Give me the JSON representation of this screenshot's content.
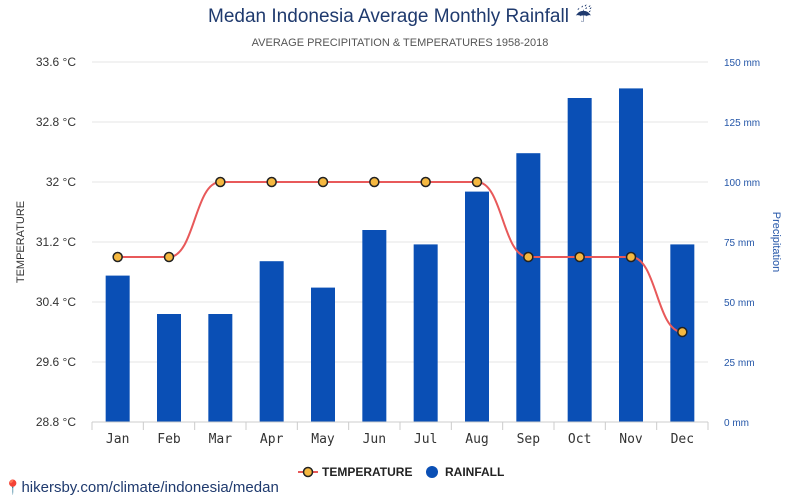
{
  "chart_data": {
    "type": "bar",
    "title": "Medan Indonesia Average Monthly Rainfall",
    "title_icon": "umbrella-rain-icon",
    "subtitle": "AVERAGE PRECIPITATION & TEMPERATURES 1958-2018",
    "categories": [
      "Jan",
      "Feb",
      "Mar",
      "Apr",
      "May",
      "Jun",
      "Jul",
      "Aug",
      "Sep",
      "Oct",
      "Nov",
      "Dec"
    ],
    "series": [
      {
        "name": "RAINFALL",
        "type": "bar",
        "axis": "right",
        "color": "#0a4fb5",
        "values": [
          61,
          45,
          45,
          67,
          56,
          80,
          74,
          96,
          112,
          135,
          139,
          74
        ]
      },
      {
        "name": "TEMPERATURE",
        "type": "line",
        "axis": "left",
        "color": "#e8595a",
        "values": [
          31.0,
          31.0,
          32.0,
          32.0,
          32.0,
          32.0,
          32.0,
          32.0,
          31.0,
          31.0,
          31.0,
          30.0
        ]
      }
    ],
    "left_axis": {
      "label": "TEMPERATURE",
      "ylim": [
        28.8,
        33.6
      ],
      "ticks": [
        "28.8 °C",
        "29.6 °C",
        "30.4 °C",
        "31.2 °C",
        "32 °C",
        "32.8 °C",
        "33.6 °C"
      ]
    },
    "right_axis": {
      "label": "Precipitation",
      "ylim": [
        0,
        150
      ],
      "ticks": [
        "0 mm",
        "25 mm",
        "50 mm",
        "75 mm",
        "100 mm",
        "125 mm",
        "150 mm"
      ]
    },
    "grid": true,
    "legend_position": "bottom-center",
    "legend": [
      "TEMPERATURE",
      "RAINFALL"
    ]
  },
  "footer": {
    "source": "hikersby.com/climate/indonesia/medan"
  }
}
